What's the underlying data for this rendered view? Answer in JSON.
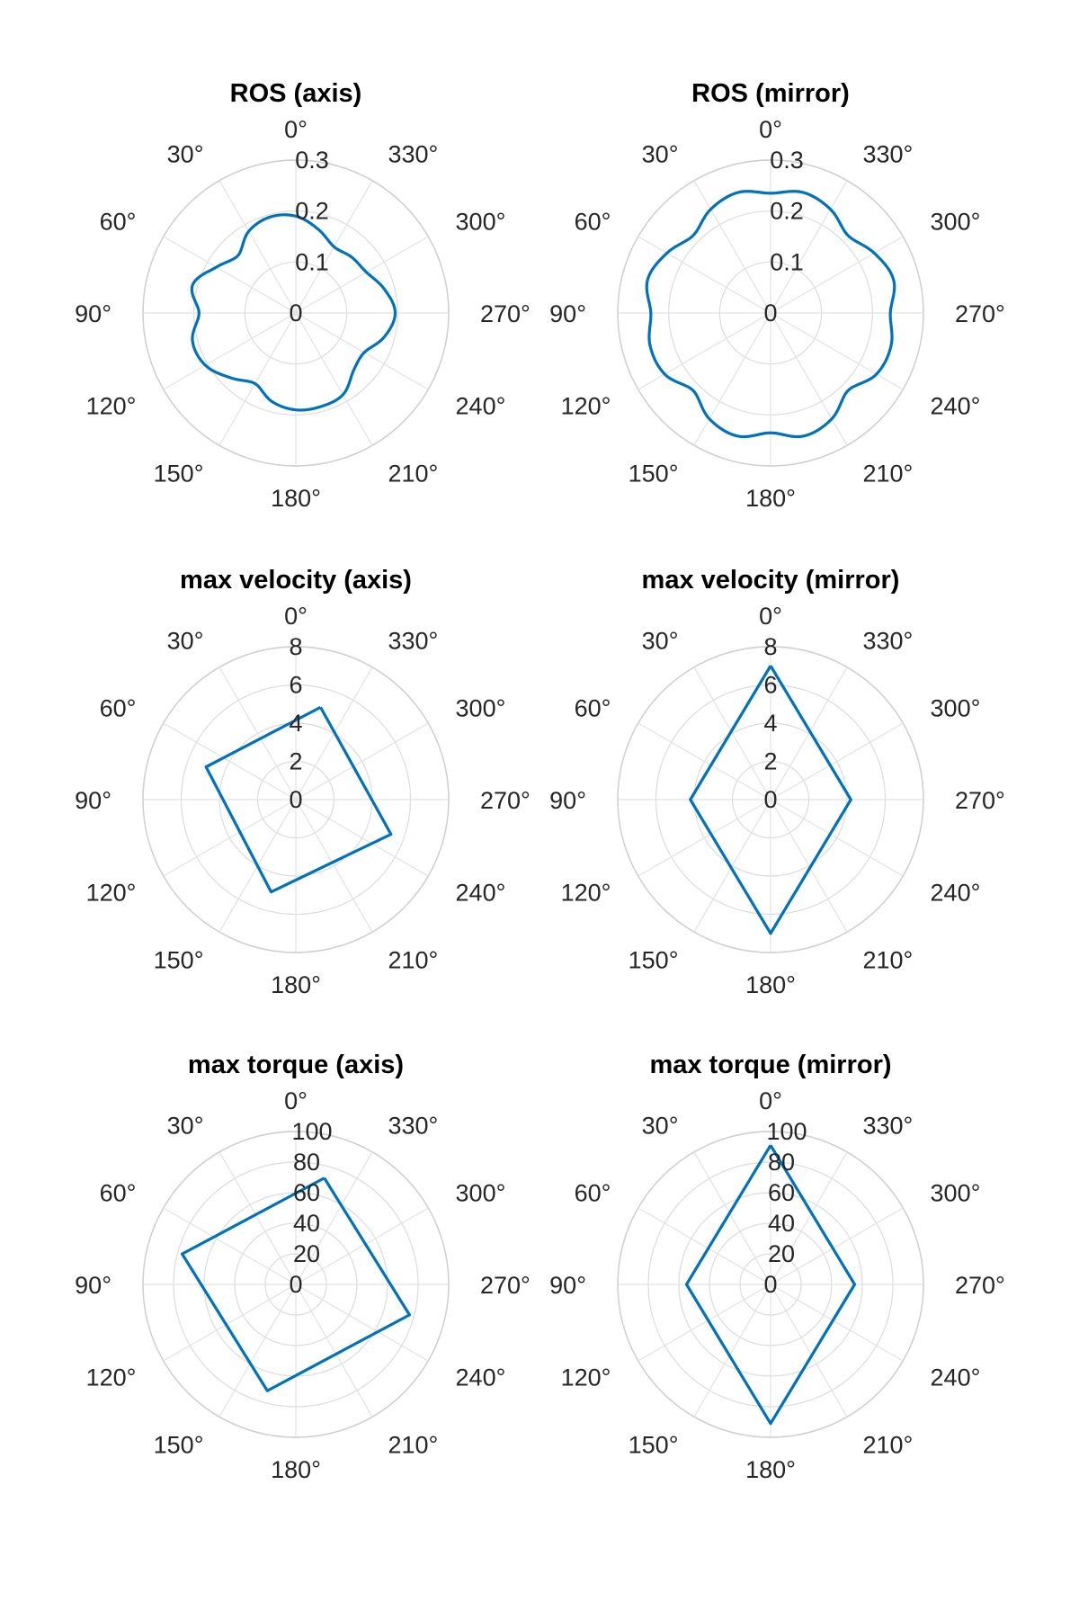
{
  "chart_data": [
    {
      "type": "polar",
      "title": "ROS (axis)",
      "series_shape": "rose",
      "theta_direction": "counterclockwise",
      "theta_zero": "top",
      "theta_ticks_deg": [
        0,
        30,
        60,
        90,
        120,
        150,
        180,
        210,
        240,
        270,
        300,
        330
      ],
      "r_ticks": [
        "0",
        "0.1",
        "0.2",
        "0.3"
      ],
      "r_ticks_numeric": [
        0,
        0.1,
        0.2,
        0.3
      ],
      "rlim": [
        0,
        0.3
      ],
      "grid": true,
      "series": [
        {
          "theta_deg": [
            0,
            15,
            30,
            45,
            60,
            75,
            90,
            105,
            120,
            135,
            150,
            165,
            180,
            195,
            210,
            225,
            240,
            255,
            270,
            285,
            300,
            315,
            330,
            345,
            360
          ],
          "r": [
            0.19,
            0.195,
            0.185,
            0.16,
            0.18,
            0.21,
            0.19,
            0.21,
            0.205,
            0.18,
            0.16,
            0.18,
            0.19,
            0.19,
            0.185,
            0.16,
            0.155,
            0.18,
            0.195,
            0.18,
            0.16,
            0.155,
            0.15,
            0.17,
            0.19
          ]
        }
      ]
    },
    {
      "type": "polar",
      "title": "ROS (mirror)",
      "series_shape": "rose",
      "theta_direction": "counterclockwise",
      "theta_zero": "top",
      "theta_ticks_deg": [
        0,
        30,
        60,
        90,
        120,
        150,
        180,
        210,
        240,
        270,
        300,
        330
      ],
      "r_ticks": [
        "0",
        "0.1",
        "0.2",
        "0.3"
      ],
      "r_ticks_numeric": [
        0,
        0.1,
        0.2,
        0.3
      ],
      "rlim": [
        0,
        0.3
      ],
      "grid": true,
      "series": [
        {
          "theta_deg": [
            0,
            15,
            30,
            45,
            60,
            75,
            90,
            105,
            120,
            135,
            150,
            165,
            180,
            195,
            210,
            225,
            240,
            255,
            270,
            285,
            300,
            315,
            330,
            345,
            360
          ],
          "r": [
            0.235,
            0.245,
            0.235,
            0.215,
            0.235,
            0.25,
            0.235,
            0.245,
            0.24,
            0.215,
            0.24,
            0.25,
            0.235,
            0.25,
            0.24,
            0.215,
            0.24,
            0.245,
            0.235,
            0.25,
            0.235,
            0.215,
            0.235,
            0.245,
            0.235
          ]
        }
      ]
    },
    {
      "type": "polar",
      "title": "max velocity (axis)",
      "series_shape": "polygon",
      "theta_direction": "counterclockwise",
      "theta_zero": "top",
      "theta_ticks_deg": [
        0,
        30,
        60,
        90,
        120,
        150,
        180,
        210,
        240,
        270,
        300,
        330
      ],
      "r_ticks": [
        "0",
        "2",
        "4",
        "6",
        "8"
      ],
      "r_ticks_numeric": [
        0,
        2,
        4,
        6,
        8
      ],
      "rlim": [
        0,
        8
      ],
      "grid": true,
      "series": [
        {
          "theta_deg": [
            345,
            70,
            165,
            250,
            345
          ],
          "r": [
            5.0,
            5.0,
            5.0,
            5.3,
            5.0
          ]
        }
      ]
    },
    {
      "type": "polar",
      "title": "max velocity (mirror)",
      "series_shape": "polygon",
      "theta_direction": "counterclockwise",
      "theta_zero": "top",
      "theta_ticks_deg": [
        0,
        30,
        60,
        90,
        120,
        150,
        180,
        210,
        240,
        270,
        300,
        330
      ],
      "r_ticks": [
        "0",
        "2",
        "4",
        "6",
        "8"
      ],
      "r_ticks_numeric": [
        0,
        2,
        4,
        6,
        8
      ],
      "rlim": [
        0,
        8
      ],
      "grid": true,
      "series": [
        {
          "theta_deg": [
            0,
            90,
            180,
            270,
            0
          ],
          "r": [
            7.0,
            4.2,
            7.0,
            4.2,
            7.0
          ]
        }
      ]
    },
    {
      "type": "polar",
      "title": "max torque (axis)",
      "series_shape": "polygon",
      "theta_direction": "counterclockwise",
      "theta_zero": "top",
      "theta_ticks_deg": [
        0,
        30,
        60,
        90,
        120,
        150,
        180,
        210,
        240,
        270,
        300,
        330
      ],
      "r_ticks": [
        "0",
        "20",
        "40",
        "60",
        "80",
        "100"
      ],
      "r_ticks_numeric": [
        0,
        20,
        40,
        60,
        80,
        100
      ],
      "rlim": [
        0,
        100
      ],
      "grid": true,
      "series": [
        {
          "theta_deg": [
            345,
            75,
            165,
            255,
            345
          ],
          "r": [
            72,
            77,
            72,
            77,
            72
          ]
        }
      ]
    },
    {
      "type": "polar",
      "title": "max torque (mirror)",
      "series_shape": "polygon",
      "theta_direction": "counterclockwise",
      "theta_zero": "top",
      "theta_ticks_deg": [
        0,
        30,
        60,
        90,
        120,
        150,
        180,
        210,
        240,
        270,
        300,
        330
      ],
      "r_ticks": [
        "0",
        "20",
        "40",
        "60",
        "80",
        "100"
      ],
      "r_ticks_numeric": [
        0,
        20,
        40,
        60,
        80,
        100
      ],
      "rlim": [
        0,
        100
      ],
      "grid": true,
      "series": [
        {
          "theta_deg": [
            0,
            90,
            180,
            270,
            0
          ],
          "r": [
            91,
            55,
            91,
            55,
            91
          ]
        }
      ]
    }
  ],
  "theta_labels": [
    "0°",
    "30°",
    "60°",
    "90°",
    "120°",
    "150°",
    "180°",
    "210°",
    "240°",
    "270°",
    "300°",
    "330°"
  ],
  "colors": {
    "series": "#0072BD",
    "grid": "#dcdcdc",
    "text": "#262626",
    "title": "#000000",
    "background": "#ffffff"
  }
}
